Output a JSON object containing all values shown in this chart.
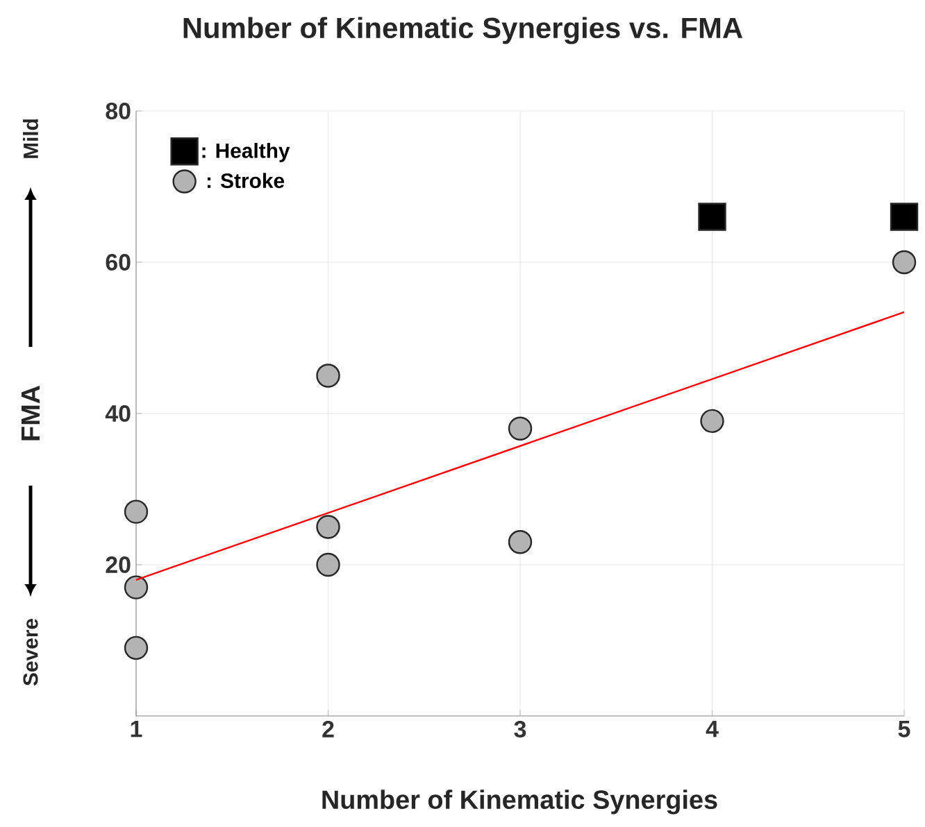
{
  "chart_data": {
    "type": "scatter",
    "title": "Number of Kinematic Synergies vs. FMA",
    "xlabel": "Number of Kinematic Synergies",
    "ylabel": "FMA",
    "annotations": [
      "Mild",
      "Severe"
    ],
    "xlim": [
      1,
      5
    ],
    "xticks": [
      1,
      2,
      3,
      4,
      5
    ],
    "ylim": [
      0,
      80
    ],
    "yticks": [
      20,
      40,
      60,
      80
    ],
    "grid": true,
    "legend": "top left",
    "series": [
      {
        "name": ": Healthy",
        "color": "#000000",
        "marker": "square",
        "x": [
          4,
          5
        ],
        "values": [
          66,
          66
        ]
      },
      {
        "name": ": Stroke",
        "color": "#b3b3b3",
        "marker": "circle",
        "x": [
          1,
          1,
          1,
          2,
          2,
          2,
          3,
          3,
          4,
          5
        ],
        "values": [
          27,
          17,
          9,
          45,
          25,
          20,
          38,
          23,
          39,
          60
        ]
      },
      {
        "type": "line",
        "color": "#ff0000",
        "marker": "none",
        "x": [
          1,
          5
        ],
        "values": [
          18,
          53.4
        ]
      }
    ]
  }
}
